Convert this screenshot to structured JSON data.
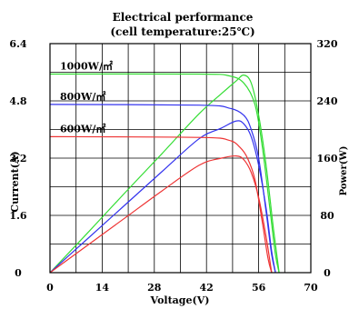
{
  "chart_data": {
    "type": "line",
    "title": [
      "Electrical performance",
      "(cell temperature:25℃)"
    ],
    "xlabel": "Voltage(V)",
    "ylabel": "Current(A)",
    "y2label": "Power(W)",
    "xlim": [
      0,
      70
    ],
    "ylim": [
      0,
      6.4
    ],
    "y2lim": [
      0,
      320
    ],
    "x_ticks": [
      "0",
      "14",
      "28",
      "42",
      "56",
      "70"
    ],
    "y_ticks": [
      "0",
      "1.6",
      "3.2",
      "4.8",
      "6.4"
    ],
    "y2_ticks": [
      "0",
      "80",
      "160",
      "240",
      "320"
    ],
    "grid": true,
    "series": [
      {
        "name": "1000W/㎡",
        "color": "#33dd33",
        "current": [
          [
            0,
            5.55
          ],
          [
            40,
            5.55
          ],
          [
            48,
            5.5
          ],
          [
            52,
            5.3
          ],
          [
            55,
            4.7
          ],
          [
            57,
            3.5
          ],
          [
            59,
            1.8
          ],
          [
            60.5,
            0.5
          ],
          [
            61.5,
            0
          ]
        ],
        "power": [
          [
            0,
            0
          ],
          [
            10,
            55
          ],
          [
            20,
            111
          ],
          [
            30,
            166
          ],
          [
            40,
            222
          ],
          [
            46,
            250
          ],
          [
            50,
            268
          ],
          [
            52,
            276
          ],
          [
            54,
            265
          ],
          [
            56,
            220
          ],
          [
            58,
            150
          ],
          [
            60,
            60
          ],
          [
            61.5,
            0
          ]
        ]
      },
      {
        "name": "800W/㎡",
        "color": "#3333ee",
        "current": [
          [
            0,
            4.7
          ],
          [
            40,
            4.68
          ],
          [
            48,
            4.6
          ],
          [
            52,
            4.4
          ],
          [
            54,
            4.0
          ],
          [
            56,
            3.2
          ],
          [
            58,
            1.7
          ],
          [
            59.5,
            0.5
          ],
          [
            60.5,
            0
          ]
        ],
        "power": [
          [
            0,
            0
          ],
          [
            10,
            47
          ],
          [
            20,
            94
          ],
          [
            30,
            141
          ],
          [
            40,
            187
          ],
          [
            46,
            202
          ],
          [
            50,
            212
          ],
          [
            52,
            208
          ],
          [
            54,
            190
          ],
          [
            56,
            150
          ],
          [
            58,
            90
          ],
          [
            59.5,
            30
          ],
          [
            60.5,
            0
          ]
        ]
      },
      {
        "name": "600W/㎡",
        "color": "#ee3333",
        "current": [
          [
            0,
            3.8
          ],
          [
            40,
            3.78
          ],
          [
            48,
            3.7
          ],
          [
            51,
            3.5
          ],
          [
            53,
            3.2
          ],
          [
            55,
            2.6
          ],
          [
            57,
            1.4
          ],
          [
            58.5,
            0.4
          ],
          [
            59.5,
            0
          ]
        ],
        "power": [
          [
            0,
            0
          ],
          [
            10,
            38
          ],
          [
            20,
            76
          ],
          [
            30,
            114
          ],
          [
            40,
            150
          ],
          [
            46,
            160
          ],
          [
            50,
            163
          ],
          [
            52,
            158
          ],
          [
            54,
            140
          ],
          [
            56,
            105
          ],
          [
            58,
            50
          ],
          [
            59.5,
            0
          ]
        ]
      }
    ]
  }
}
